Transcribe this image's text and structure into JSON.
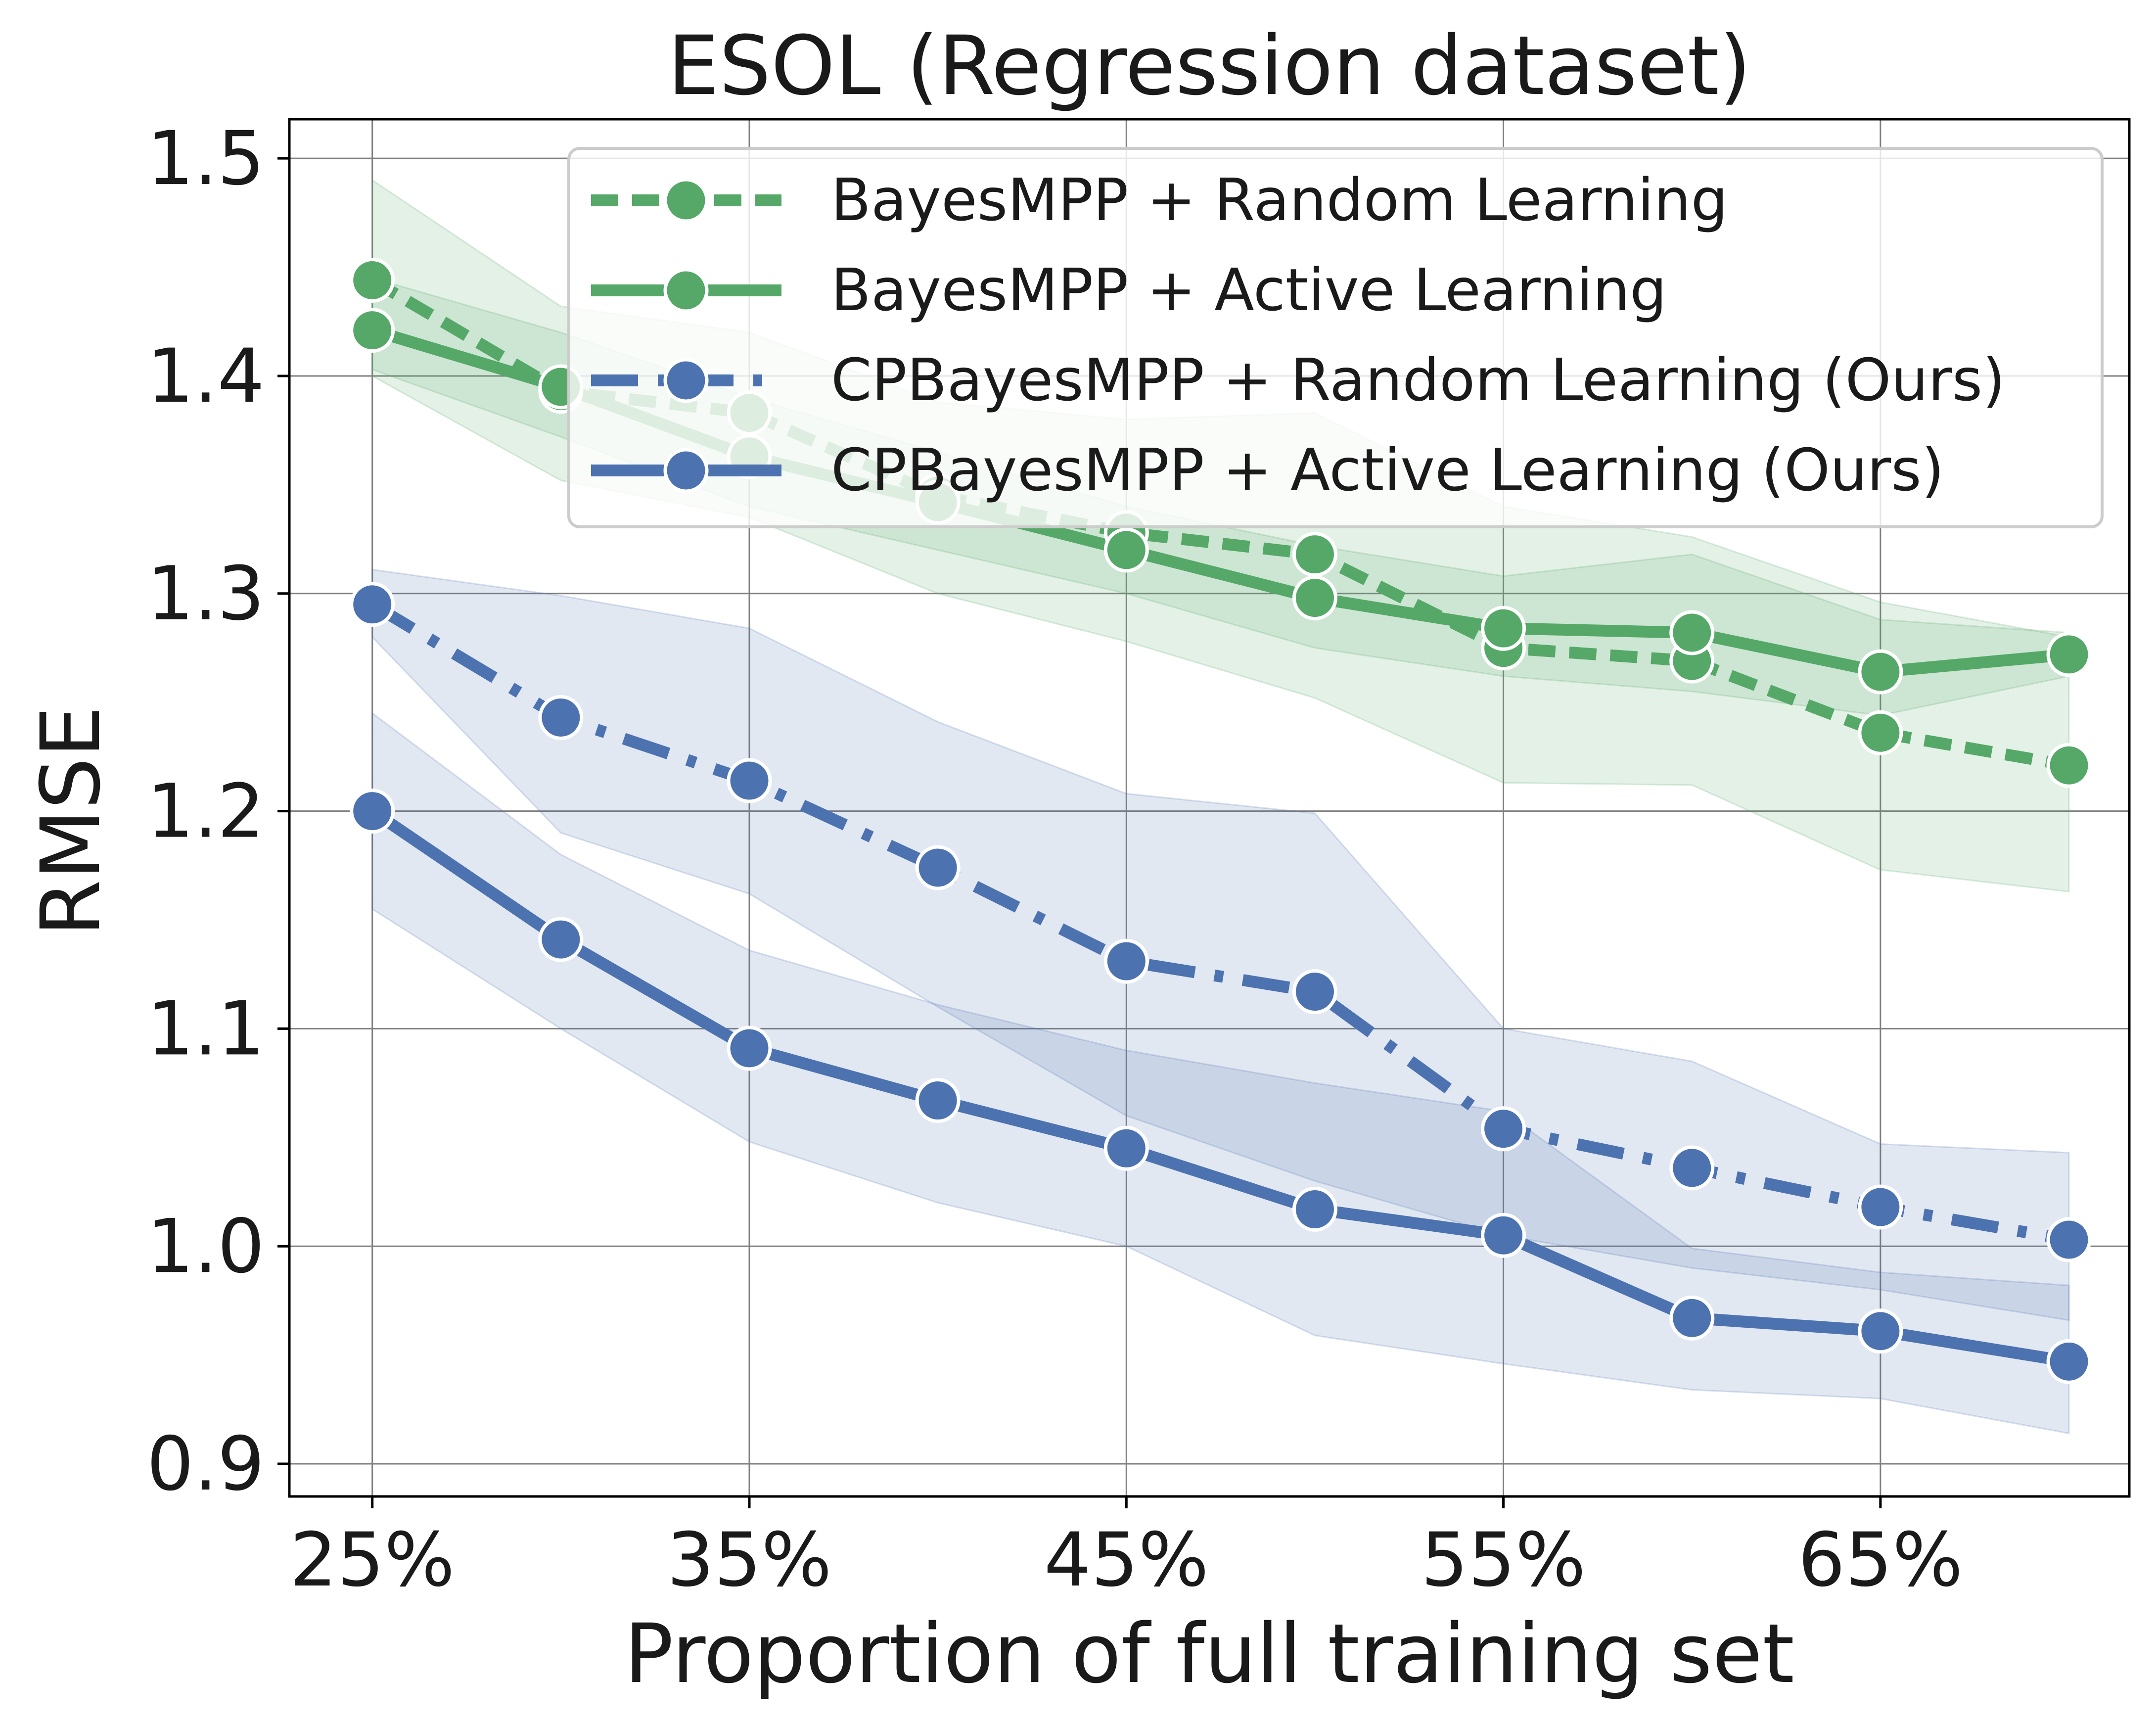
{
  "chart_data": {
    "type": "line",
    "title": "ESOL (Regression dataset)",
    "xlabel": "Proportion of full training set",
    "ylabel": "RMSE",
    "x": [
      25,
      30,
      35,
      40,
      45,
      50,
      55,
      60,
      65,
      70
    ],
    "xlim": [
      22.8,
      71.6
    ],
    "ylim": [
      0.885,
      1.518
    ],
    "x_ticks": [
      25,
      35,
      45,
      55,
      65
    ],
    "x_tick_labels": [
      "25%",
      "35%",
      "45%",
      "55%",
      "65%"
    ],
    "y_ticks": [
      0.9,
      1.0,
      1.1,
      1.2,
      1.3,
      1.4,
      1.5
    ],
    "y_tick_labels": [
      "0.9",
      "1.0",
      "1.1",
      "1.2",
      "1.3",
      "1.4",
      "1.5"
    ],
    "grid": true,
    "legend_position": "top-right",
    "series": [
      {
        "name": "BayesMPP + Random Learning",
        "color": "#55a868",
        "style": "dashed",
        "values": [
          1.444,
          1.393,
          1.383,
          1.345,
          1.328,
          1.318,
          1.275,
          1.269,
          1.236,
          1.221
        ],
        "band_low": [
          1.4,
          1.352,
          1.335,
          1.3,
          1.278,
          1.252,
          1.213,
          1.212,
          1.173,
          1.163
        ],
        "band_high": [
          1.49,
          1.432,
          1.42,
          1.388,
          1.38,
          1.383,
          1.34,
          1.326,
          1.296,
          1.28
        ]
      },
      {
        "name": "BayesMPP + Active Learning",
        "color": "#55a868",
        "style": "solid",
        "values": [
          1.421,
          1.395,
          1.363,
          1.342,
          1.32,
          1.298,
          1.284,
          1.282,
          1.264,
          1.272
        ],
        "band_low": [
          1.403,
          1.372,
          1.34,
          1.32,
          1.3,
          1.275,
          1.262,
          1.255,
          1.244,
          1.262
        ],
        "band_high": [
          1.445,
          1.42,
          1.39,
          1.365,
          1.34,
          1.322,
          1.308,
          1.318,
          1.288,
          1.282
        ]
      },
      {
        "name": "CPBayesMPP + Random Learning (Ours)",
        "color": "#4c72b0",
        "style": "dashdot",
        "values": [
          1.295,
          1.243,
          1.214,
          1.174,
          1.131,
          1.117,
          1.054,
          1.036,
          1.018,
          1.003
        ],
        "band_low": [
          1.28,
          1.19,
          1.162,
          1.11,
          1.06,
          1.03,
          1.005,
          0.99,
          0.98,
          0.966
        ],
        "band_high": [
          1.311,
          1.299,
          1.284,
          1.241,
          1.208,
          1.199,
          1.1,
          1.085,
          1.047,
          1.043
        ]
      },
      {
        "name": "CPBayesMPP + Active Learning (Ours)",
        "color": "#4c72b0",
        "style": "solid",
        "values": [
          1.2,
          1.141,
          1.091,
          1.067,
          1.045,
          1.017,
          1.005,
          0.967,
          0.961,
          0.947
        ],
        "band_low": [
          1.155,
          1.1,
          1.048,
          1.02,
          1.0,
          0.959,
          0.946,
          0.934,
          0.93,
          0.914
        ],
        "band_high": [
          1.245,
          1.18,
          1.136,
          1.111,
          1.09,
          1.075,
          1.062,
          0.999,
          0.988,
          0.982
        ]
      }
    ]
  }
}
